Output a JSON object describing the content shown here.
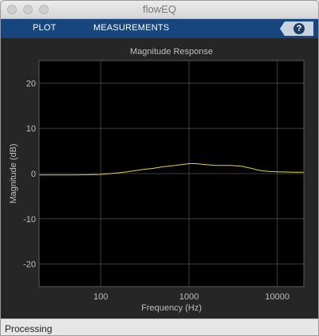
{
  "window": {
    "title": "flowEQ"
  },
  "toolstrip": {
    "tabs": [
      "PLOT",
      "MEASUREMENTS"
    ],
    "help_label": "?"
  },
  "status": {
    "text": "Processing"
  },
  "colors": {
    "toolstrip": "#17457e",
    "curve": "#e6d43a",
    "axes_bg": "#000000",
    "text": "#bfbfbf"
  },
  "chart_data": {
    "type": "line",
    "title": "Magnitude Response",
    "xlabel": "Frequency (Hz)",
    "ylabel": "Magnitude (dB)",
    "xscale": "log",
    "xlim": [
      20,
      20000
    ],
    "ylim": [
      -25,
      25
    ],
    "xticks": [
      100,
      1000,
      10000
    ],
    "xtick_labels": [
      "100",
      "1000",
      "10000"
    ],
    "yticks": [
      -20,
      -10,
      0,
      10,
      20
    ],
    "ytick_labels": [
      "-20",
      "-10",
      "0",
      "10",
      "20"
    ],
    "grid": true,
    "series": [
      {
        "x": [
          20,
          50,
          100,
          150,
          200,
          300,
          400,
          500,
          700,
          900,
          1000,
          1200,
          1500,
          2000,
          2500,
          3000,
          4000,
          5000,
          6000,
          7000,
          8000,
          10000,
          15000,
          20000
        ],
        "y": [
          -0.3,
          -0.3,
          -0.2,
          0.1,
          0.4,
          0.9,
          1.2,
          1.5,
          1.8,
          2.1,
          2.2,
          2.2,
          2.0,
          1.8,
          1.8,
          1.8,
          1.6,
          1.2,
          0.8,
          0.6,
          0.5,
          0.4,
          0.3,
          0.3
        ]
      }
    ]
  }
}
